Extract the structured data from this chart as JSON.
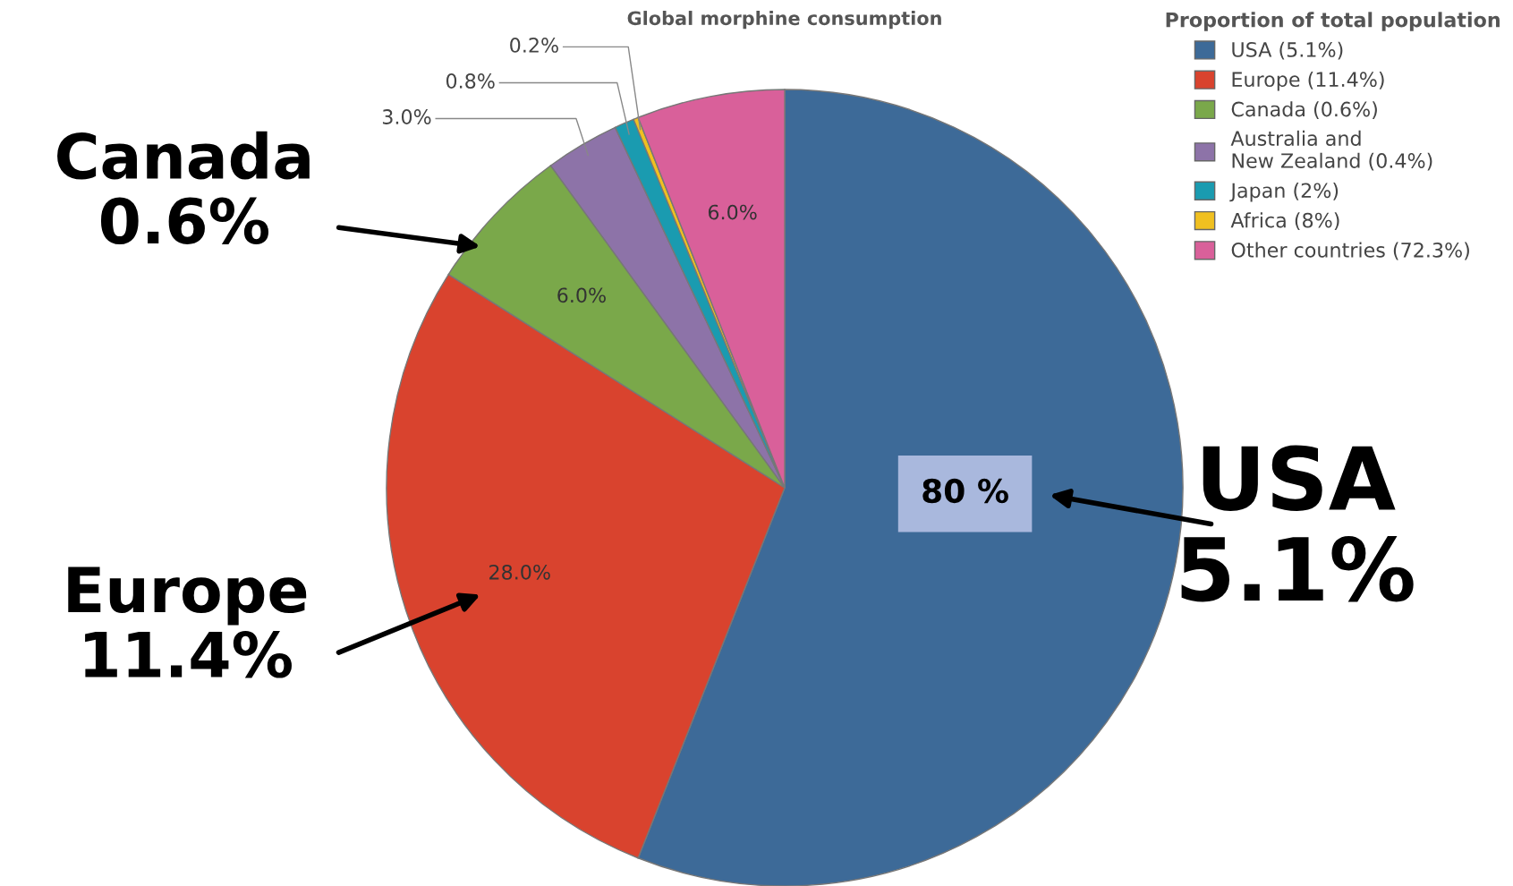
{
  "chart_data": {
    "type": "pie",
    "title": "Global morphine consumption",
    "legend_title": "Proportion of total population",
    "categories": [
      "USA (5.1%)",
      "Europe (11.4%)",
      "Canada (0.6%)",
      "Australia and\nNew Zealand (0.4%)",
      "Japan (2%)",
      "Africa (8%)",
      "Other countries (72.3%)"
    ],
    "values": [
      56,
      28,
      6,
      3,
      0.8,
      0.2,
      6
    ],
    "colors": [
      "#3d6a98",
      "#d9432e",
      "#7aa84a",
      "#8d73a8",
      "#1a9bb0",
      "#f0c020",
      "#d9609a"
    ],
    "value_labels": [
      null,
      "28.0%",
      "6.0%",
      "3.0%",
      "0.8%",
      "0.2%",
      "6.0%"
    ],
    "legend": "top right",
    "annotations": [
      "80 %",
      "Canada\n0.6%",
      "Europe\n11.4%",
      "USA\n5.1%"
    ]
  }
}
